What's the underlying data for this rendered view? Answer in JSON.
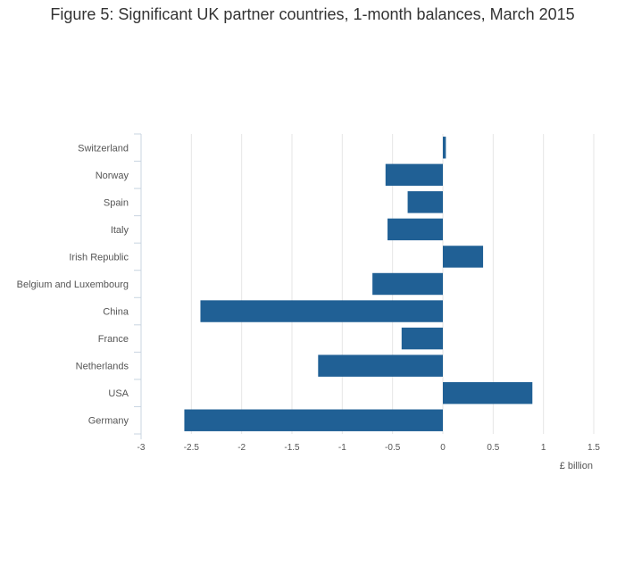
{
  "chart_data": {
    "type": "bar",
    "orientation": "horizontal",
    "title": "Figure 5: Significant UK partner countries, 1-month balances, March 2015",
    "xlabel": "£ billion",
    "ylabel": "",
    "xlim": [
      -3,
      1.5
    ],
    "xticks": [
      -3,
      -2.5,
      -2,
      -1.5,
      -1,
      -0.5,
      0,
      0.5,
      1,
      1.5
    ],
    "xtick_labels": [
      "-3",
      "-2.5",
      "-2",
      "-1.5",
      "-1",
      "-0.5",
      "0",
      "0.5",
      "1",
      "1.5"
    ],
    "grid": "vertical",
    "categories": [
      "Switzerland",
      "Norway",
      "Spain",
      "Italy",
      "Irish Republic",
      "Belgium and Luxembourg",
      "China",
      "France",
      "Netherlands",
      "USA",
      "Germany"
    ],
    "values": [
      0.03,
      -0.57,
      -0.35,
      -0.55,
      0.4,
      -0.7,
      -2.41,
      -0.41,
      -1.24,
      0.89,
      -2.57
    ],
    "bar_color": "#206095"
  }
}
